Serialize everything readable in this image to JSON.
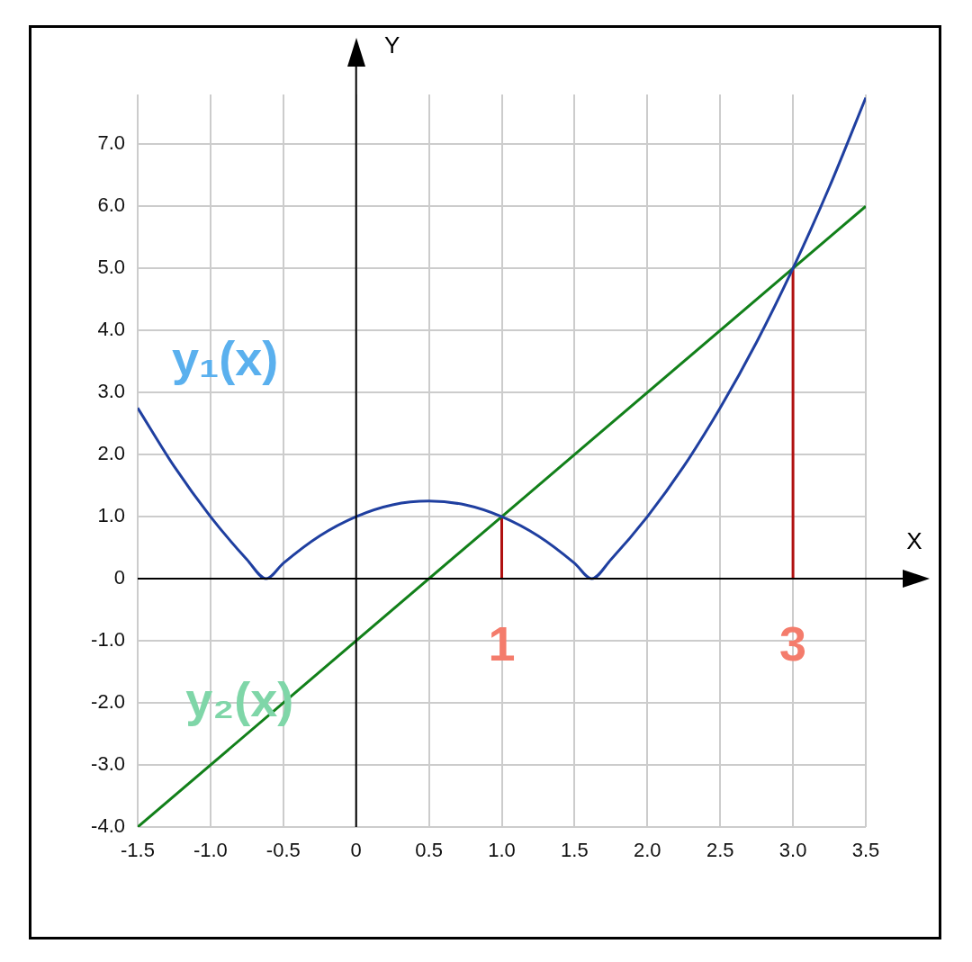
{
  "chart_data": {
    "type": "line",
    "xlabel": "X",
    "ylabel": "Y",
    "xlim": [
      -1.5,
      3.5
    ],
    "ylim": [
      -4,
      7.8
    ],
    "xticks": [
      {
        "value": -1.5,
        "label": "-1.5"
      },
      {
        "value": -1,
        "label": "-1.0"
      },
      {
        "value": -0.5,
        "label": "-0.5"
      },
      0,
      0.5,
      {
        "value": 1,
        "label": "1.0"
      },
      1.5,
      {
        "value": 2,
        "label": "2.0"
      },
      2.5,
      {
        "value": 3,
        "label": "3.0"
      },
      3.5
    ],
    "yticks": [
      {
        "value": -4,
        "label": "-4.0"
      },
      {
        "value": -3,
        "label": "-3.0"
      },
      {
        "value": -2,
        "label": "-2.0"
      },
      {
        "value": -1,
        "label": "-1.0"
      },
      0,
      {
        "value": 1,
        "label": "1.0"
      },
      {
        "value": 2,
        "label": "2.0"
      },
      {
        "value": 3,
        "label": "3.0"
      },
      {
        "value": 4,
        "label": "4.0"
      },
      {
        "value": 5,
        "label": "5.0"
      },
      {
        "value": 6,
        "label": "6.0"
      },
      {
        "value": 7,
        "label": "7.0"
      }
    ],
    "grid": true,
    "legend": false,
    "marker": "none",
    "line_style": "solid",
    "series": [
      {
        "color": "#1f3fa0",
        "x": [
          -1.5,
          -1.25,
          -1,
          -0.75,
          -0.618,
          -0.5,
          -0.25,
          0,
          0.25,
          0.5,
          0.75,
          1,
          1.25,
          1.5,
          1.618,
          1.75,
          2,
          2.25,
          2.5,
          2.75,
          3,
          3.25,
          3.5
        ],
        "values": [
          2.75,
          1.81,
          1,
          0.31,
          0,
          0.25,
          0.69,
          1,
          1.19,
          1.25,
          1.19,
          1,
          0.69,
          0.25,
          0,
          0.31,
          1,
          1.81,
          2.75,
          3.81,
          5,
          6.31,
          7.75
        ]
      },
      {
        "color": "#12801a",
        "x": [
          -1.5,
          3.5
        ],
        "values": [
          -4,
          6
        ]
      },
      {
        "color": "#b01010",
        "x": [
          1,
          1
        ],
        "values": [
          0,
          1
        ]
      },
      {
        "color": "#b01010",
        "x": [
          3,
          3
        ],
        "values": [
          0,
          5
        ]
      }
    ],
    "annotations": [
      "y₁(x)",
      "y₂(x)",
      "1",
      "3"
    ]
  }
}
